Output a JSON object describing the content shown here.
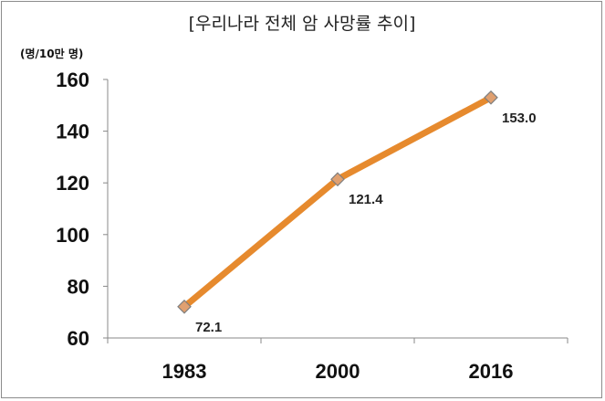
{
  "chart_data": {
    "type": "line",
    "title": "[우리나라 전체 암 사망률 추이]",
    "unit_label": "(명/10만 명)",
    "xlabel": "",
    "ylabel": "",
    "categories": [
      "1983",
      "2000",
      "2016"
    ],
    "series": [
      {
        "values": [
          72.1,
          121.4,
          153.0
        ],
        "data_labels": [
          "72.1",
          "121.4",
          "153.0"
        ]
      }
    ],
    "ylim": [
      60,
      160
    ],
    "yticks": [
      "60",
      "80",
      "100",
      "120",
      "140",
      "160"
    ],
    "grid": false,
    "legend": "none",
    "line_color": "#E68A2E",
    "marker_color": "#E0A070",
    "marker_shape": "diamond"
  }
}
